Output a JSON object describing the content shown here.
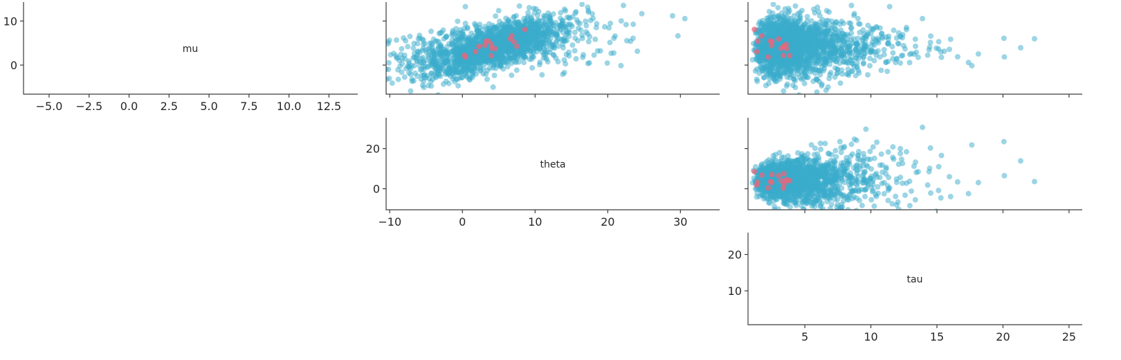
{
  "chart_data": {
    "type": "scatter",
    "layout": "pair-plot-upper-triangle",
    "variables": [
      "mu",
      "theta",
      "tau"
    ],
    "ranges": {
      "mu": [
        -6.6,
        14.3
      ],
      "theta": [
        -10.5,
        35.4
      ],
      "tau": [
        0.7,
        26.0
      ]
    },
    "x_ticks": {
      "mu": [
        "−5.0",
        "−2.5",
        "0.0",
        "2.5",
        "5.0",
        "7.5",
        "10.0",
        "12.5"
      ],
      "theta": [
        "−10",
        "0",
        "10",
        "20",
        "30"
      ],
      "tau": [
        "5",
        "10",
        "15",
        "20",
        "25"
      ]
    },
    "x_tick_values": {
      "mu": [
        -5,
        -2.5,
        0,
        2.5,
        5,
        7.5,
        10,
        12.5
      ],
      "theta": [
        -10,
        0,
        10,
        20,
        30
      ],
      "tau": [
        5,
        10,
        15,
        20,
        25
      ]
    },
    "y_ticks": {
      "mu": [
        "10",
        "0"
      ],
      "theta": [
        "20",
        "0"
      ],
      "tau": [
        "20",
        "10"
      ]
    },
    "y_tick_values": {
      "mu": [
        10,
        0
      ],
      "theta": [
        20,
        0
      ],
      "tau": [
        20,
        10
      ]
    },
    "panels": [
      {
        "x": "theta",
        "y": "mu"
      },
      {
        "x": "tau",
        "y": "mu"
      },
      {
        "x": "tau",
        "y": "theta"
      }
    ],
    "sample_count": 2000,
    "divergence_count": 16,
    "grid": false,
    "legend": "none",
    "colors": {
      "samples": "#3aaccb",
      "divergences": "#e8677c",
      "axis": "#3a3a3a"
    }
  }
}
